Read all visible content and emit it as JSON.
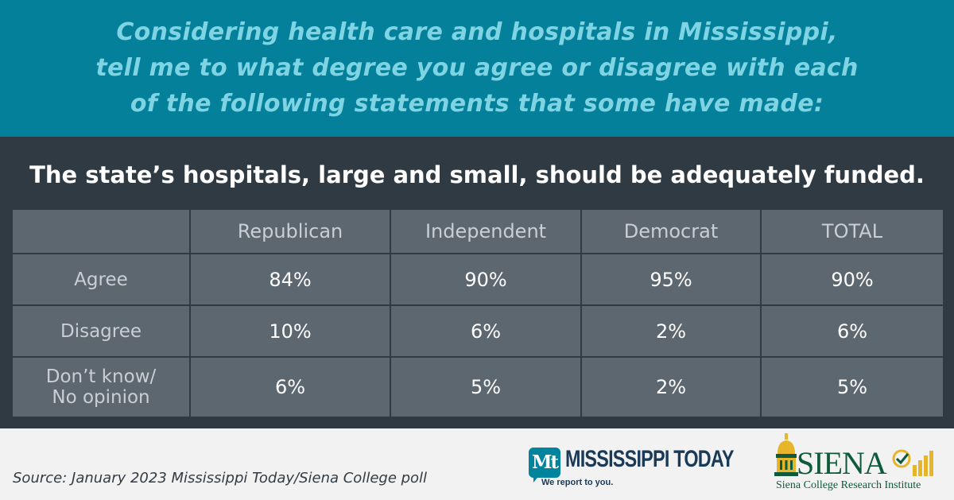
{
  "header": {
    "lines": [
      "Considering health care and hospitals in Mississippi,",
      "tell me to what degree you agree or disagree with each",
      "of the following statements that some have made:"
    ]
  },
  "statement": "The state’s hospitals, large and small, should be adequately funded.",
  "chart_data": {
    "type": "table",
    "columns": [
      "",
      "Republican",
      "Independent",
      "Democrat",
      "TOTAL"
    ],
    "rows": [
      {
        "label": [
          "Agree"
        ],
        "values": [
          "84%",
          "90%",
          "95%",
          "90%"
        ]
      },
      {
        "label": [
          "Disagree"
        ],
        "values": [
          "10%",
          "6%",
          "2%",
          "6%"
        ]
      },
      {
        "label": [
          "Don’t know/",
          "No opinion"
        ],
        "values": [
          "6%",
          "5%",
          "2%",
          "5%"
        ]
      }
    ]
  },
  "footer": {
    "source": "Source: January 2023 Mississippi Today/Siena College poll",
    "mt_logo": {
      "badge": "Mt",
      "name": "MISSISSIPPI TODAY",
      "tagline": "We report to you."
    },
    "siena_logo": {
      "name": "SIENA",
      "subtitle": "Siena College Research Institute"
    }
  },
  "colors": {
    "header_bg": "#04809a",
    "header_text": "#7fd4e4",
    "body_bg": "#2f3a43",
    "cell_bg": "#5c6770",
    "footer_bg": "#f1f2f1",
    "siena_green": "#0f5a3a",
    "siena_gold": "#e6b52a"
  }
}
